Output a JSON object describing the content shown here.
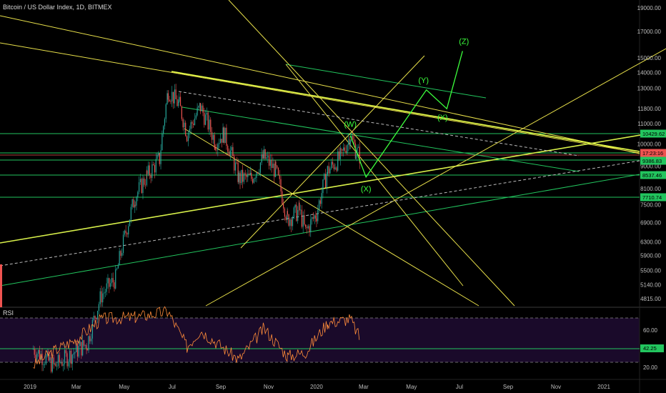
{
  "header": {
    "title": "Bitcoin / US Dollar Index, 1D, BITMEX"
  },
  "rsi_panel": {
    "label": "RSI"
  },
  "chart_data": {
    "type": "line",
    "title": "Bitcoin / US Dollar Index, 1D, BITMEX",
    "price_axis": {
      "scale": "log",
      "ticks": [
        "19000.00",
        "17000.00",
        "15000.00",
        "14000.00",
        "13000.00",
        "11800.00",
        "11000.00",
        "10000.00",
        "9000.00",
        "8100.00",
        "7500.00",
        "6900.00",
        "6300.00",
        "5900.00",
        "5500.00",
        "5140.00",
        "4815.00"
      ]
    },
    "rsi_axis": {
      "ticks": [
        "60.00",
        "40.00",
        "20.00"
      ],
      "levels": [
        70,
        30
      ],
      "current": "42.25"
    },
    "time_axis": {
      "labels": [
        "2019",
        "Mar",
        "May",
        "Jul",
        "Sep",
        "Nov",
        "2020",
        "Mar",
        "May",
        "Jul",
        "Sep",
        "Nov",
        "2021"
      ]
    },
    "price_tags": [
      {
        "value": "10429.62",
        "color": "#22c55e"
      },
      {
        "value": "17:23:16",
        "color": "#ef5350"
      },
      {
        "value": "9386.83",
        "color": "#22c55e"
      },
      {
        "value": "8537.46",
        "color": "#22c55e"
      },
      {
        "value": "7710.74",
        "color": "#22c55e"
      }
    ],
    "wave_labels": [
      "(W)",
      "(X)",
      "(Y)",
      "(X)",
      "(Z)"
    ],
    "series": [
      {
        "name": "",
        "type": "candles",
        "points": [
          [
            "2019-01-05",
            3800
          ],
          [
            "2019-02-01",
            3500
          ],
          [
            "2019-03-15",
            3900
          ],
          [
            "2019-04-02",
            4900
          ],
          [
            "2019-04-20",
            5300
          ],
          [
            "2019-05-15",
            7800
          ],
          [
            "2019-05-30",
            8600
          ],
          [
            "2019-06-15",
            9300
          ],
          [
            "2019-06-26",
            12900
          ],
          [
            "2019-07-10",
            12000
          ],
          [
            "2019-07-20",
            10500
          ],
          [
            "2019-08-06",
            11900
          ],
          [
            "2019-08-25",
            10100
          ],
          [
            "2019-09-05",
            10500
          ],
          [
            "2019-09-24",
            8500
          ],
          [
            "2019-10-10",
            8500
          ],
          [
            "2019-10-26",
            9400
          ],
          [
            "2019-11-10",
            8800
          ],
          [
            "2019-11-25",
            7000
          ],
          [
            "2019-12-10",
            7300
          ],
          [
            "2019-12-18",
            6600
          ],
          [
            "2020-01-01",
            7200
          ],
          [
            "2020-01-15",
            8800
          ],
          [
            "2020-02-01",
            9400
          ],
          [
            "2020-02-13",
            10400
          ],
          [
            "2020-02-20",
            9700
          ],
          [
            "2020-02-26",
            9400
          ]
        ]
      },
      {
        "name": "",
        "type": "rsi",
        "points": [
          [
            "2019-01-05",
            22
          ],
          [
            "2019-02-01",
            38
          ],
          [
            "2019-03-01",
            50
          ],
          [
            "2019-04-02",
            72
          ],
          [
            "2019-05-15",
            74
          ],
          [
            "2019-06-26",
            80
          ],
          [
            "2019-07-20",
            42
          ],
          [
            "2019-08-06",
            60
          ],
          [
            "2019-09-24",
            28
          ],
          [
            "2019-10-26",
            62
          ],
          [
            "2019-11-25",
            32
          ],
          [
            "2019-12-18",
            36
          ],
          [
            "2020-01-15",
            68
          ],
          [
            "2020-02-13",
            72
          ],
          [
            "2020-02-26",
            50
          ]
        ]
      }
    ],
    "projection": {
      "points": [
        [
          "2020-02-13",
          10400
        ],
        [
          "2020-03-04",
          8550
        ],
        [
          "2020-05-20",
          12900
        ],
        [
          "2020-06-15",
          11800
        ],
        [
          "2020-07-05",
          15500
        ]
      ]
    }
  }
}
